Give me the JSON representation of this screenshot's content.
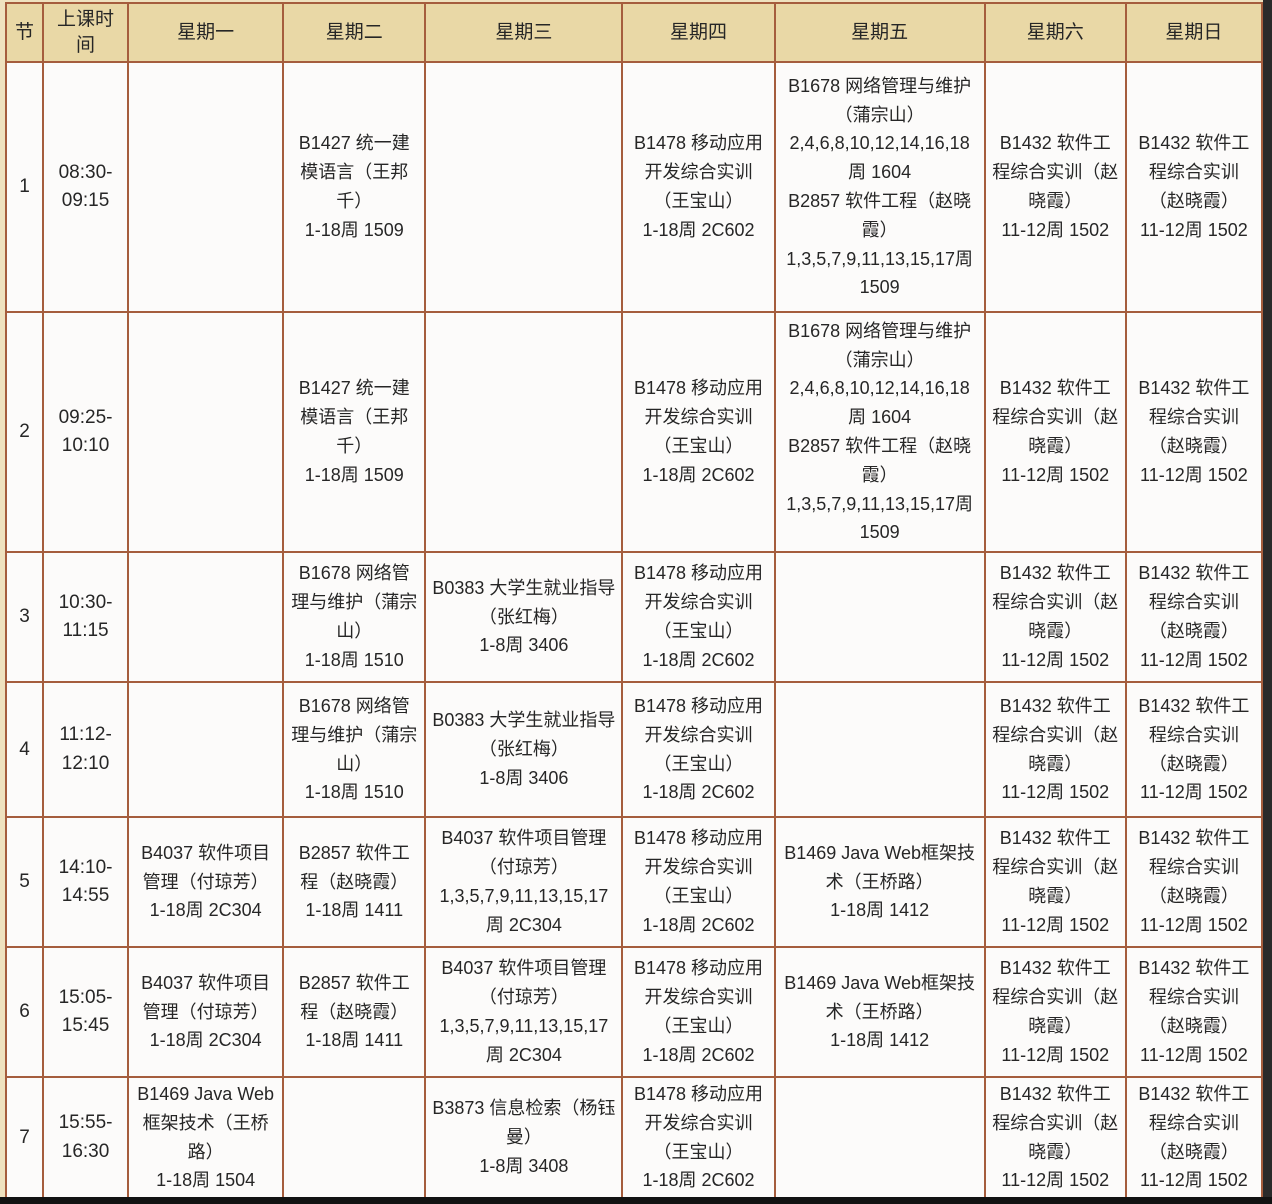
{
  "colors": {
    "page_bg": "#efe2bf",
    "header_bg": "#e9d8a6",
    "cell_bg": "#fcfbfa",
    "border": "#a55d3d",
    "edge_dark": "#2a2a2a",
    "text": "#262626"
  },
  "timetable": {
    "headers": [
      "节",
      "上课时间",
      "星期一",
      "星期二",
      "星期三",
      "星期四",
      "星期五",
      "星期六",
      "星期日"
    ],
    "rows": [
      {
        "period": "1",
        "time": "08:30-09:15",
        "cells": [
          [],
          [
            {
              "title": "B1427 统一建模语言（王邦千）",
              "weeks": "1-18周 1509"
            }
          ],
          [],
          [
            {
              "title": "B1478 移动应用开发综合实训（王宝山）",
              "weeks": "1-18周 2C602"
            }
          ],
          [
            {
              "title": "B1678 网络管理与维护（蒲宗山）",
              "weeks": "2,4,6,8,10,12,14,16,18周 1604"
            },
            {
              "title": "B2857 软件工程（赵晓霞）",
              "weeks": "1,3,5,7,9,11,13,15,17周 1509"
            }
          ],
          [
            {
              "title": "B1432 软件工程综合实训（赵晓霞）",
              "weeks": "11-12周 1502"
            }
          ],
          [
            {
              "title": "B1432 软件工程综合实训（赵晓霞）",
              "weeks": "11-12周 1502"
            }
          ]
        ]
      },
      {
        "period": "2",
        "time": "09:25-10:10",
        "cells": [
          [],
          [
            {
              "title": "B1427 统一建模语言（王邦千）",
              "weeks": "1-18周 1509"
            }
          ],
          [],
          [
            {
              "title": "B1478 移动应用开发综合实训（王宝山）",
              "weeks": "1-18周 2C602"
            }
          ],
          [
            {
              "title": "B1678 网络管理与维护（蒲宗山）",
              "weeks": "2,4,6,8,10,12,14,16,18周 1604"
            },
            {
              "title": "B2857 软件工程（赵晓霞）",
              "weeks": "1,3,5,7,9,11,13,15,17周 1509"
            }
          ],
          [
            {
              "title": "B1432 软件工程综合实训（赵晓霞）",
              "weeks": "11-12周 1502"
            }
          ],
          [
            {
              "title": "B1432 软件工程综合实训（赵晓霞）",
              "weeks": "11-12周 1502"
            }
          ]
        ]
      },
      {
        "period": "3",
        "time": "10:30-11:15",
        "cells": [
          [],
          [
            {
              "title": "B1678 网络管理与维护（蒲宗山）",
              "weeks": "1-18周 1510"
            }
          ],
          [
            {
              "title": "B0383 大学生就业指导（张红梅）",
              "weeks": "1-8周 3406"
            }
          ],
          [
            {
              "title": "B1478 移动应用开发综合实训（王宝山）",
              "weeks": "1-18周 2C602"
            }
          ],
          [],
          [
            {
              "title": "B1432 软件工程综合实训（赵晓霞）",
              "weeks": "11-12周 1502"
            }
          ],
          [
            {
              "title": "B1432 软件工程综合实训（赵晓霞）",
              "weeks": "11-12周 1502"
            }
          ]
        ]
      },
      {
        "period": "4",
        "time": "11:12-12:10",
        "cells": [
          [],
          [
            {
              "title": "B1678 网络管理与维护（蒲宗山）",
              "weeks": "1-18周 1510"
            }
          ],
          [
            {
              "title": "B0383 大学生就业指导（张红梅）",
              "weeks": "1-8周 3406"
            }
          ],
          [
            {
              "title": "B1478 移动应用开发综合实训（王宝山）",
              "weeks": "1-18周 2C602"
            }
          ],
          [],
          [
            {
              "title": "B1432 软件工程综合实训（赵晓霞）",
              "weeks": "11-12周 1502"
            }
          ],
          [
            {
              "title": "B1432 软件工程综合实训（赵晓霞）",
              "weeks": "11-12周 1502"
            }
          ]
        ]
      },
      {
        "period": "5",
        "time": "14:10-14:55",
        "cells": [
          [
            {
              "title": "B4037 软件项目管理（付琼芳）",
              "weeks": "1-18周 2C304"
            }
          ],
          [
            {
              "title": "B2857 软件工程（赵晓霞）",
              "weeks": "1-18周 1411"
            }
          ],
          [
            {
              "title": "B4037 软件项目管理（付琼芳）",
              "weeks": "1,3,5,7,9,11,13,15,17周 2C304"
            }
          ],
          [
            {
              "title": "B1478 移动应用开发综合实训（王宝山）",
              "weeks": "1-18周 2C602"
            }
          ],
          [
            {
              "title": "B1469 Java Web框架技术（王桥路）",
              "weeks": "1-18周 1412"
            }
          ],
          [
            {
              "title": "B1432 软件工程综合实训（赵晓霞）",
              "weeks": "11-12周 1502"
            }
          ],
          [
            {
              "title": "B1432 软件工程综合实训（赵晓霞）",
              "weeks": "11-12周 1502"
            }
          ]
        ]
      },
      {
        "period": "6",
        "time": "15:05-15:45",
        "cells": [
          [
            {
              "title": "B4037 软件项目管理（付琼芳）",
              "weeks": "1-18周 2C304"
            }
          ],
          [
            {
              "title": "B2857 软件工程（赵晓霞）",
              "weeks": "1-18周 1411"
            }
          ],
          [
            {
              "title": "B4037 软件项目管理（付琼芳）",
              "weeks": "1,3,5,7,9,11,13,15,17周 2C304"
            }
          ],
          [
            {
              "title": "B1478 移动应用开发综合实训（王宝山）",
              "weeks": "1-18周 2C602"
            }
          ],
          [
            {
              "title": "B1469 Java Web框架技术（王桥路）",
              "weeks": "1-18周 1412"
            }
          ],
          [
            {
              "title": "B1432 软件工程综合实训（赵晓霞）",
              "weeks": "11-12周 1502"
            }
          ],
          [
            {
              "title": "B1432 软件工程综合实训（赵晓霞）",
              "weeks": "11-12周 1502"
            }
          ]
        ]
      },
      {
        "period": "7",
        "time": "15:55-16:30",
        "cells": [
          [
            {
              "title": "B1469 Java Web框架技术（王桥路）",
              "weeks": "1-18周 1504"
            }
          ],
          [],
          [
            {
              "title": "B3873 信息检索（杨钰曼）",
              "weeks": "1-8周 3408"
            }
          ],
          [
            {
              "title": "B1478 移动应用开发综合实训（王宝山）",
              "weeks": "1-18周 2C602"
            }
          ],
          [],
          [
            {
              "title": "B1432 软件工程综合实训（赵晓霞）",
              "weeks": "11-12周 1502"
            }
          ],
          [
            {
              "title": "B1432 软件工程综合实训（赵晓霞）",
              "weeks": "11-12周 1502"
            }
          ]
        ]
      }
    ]
  }
}
